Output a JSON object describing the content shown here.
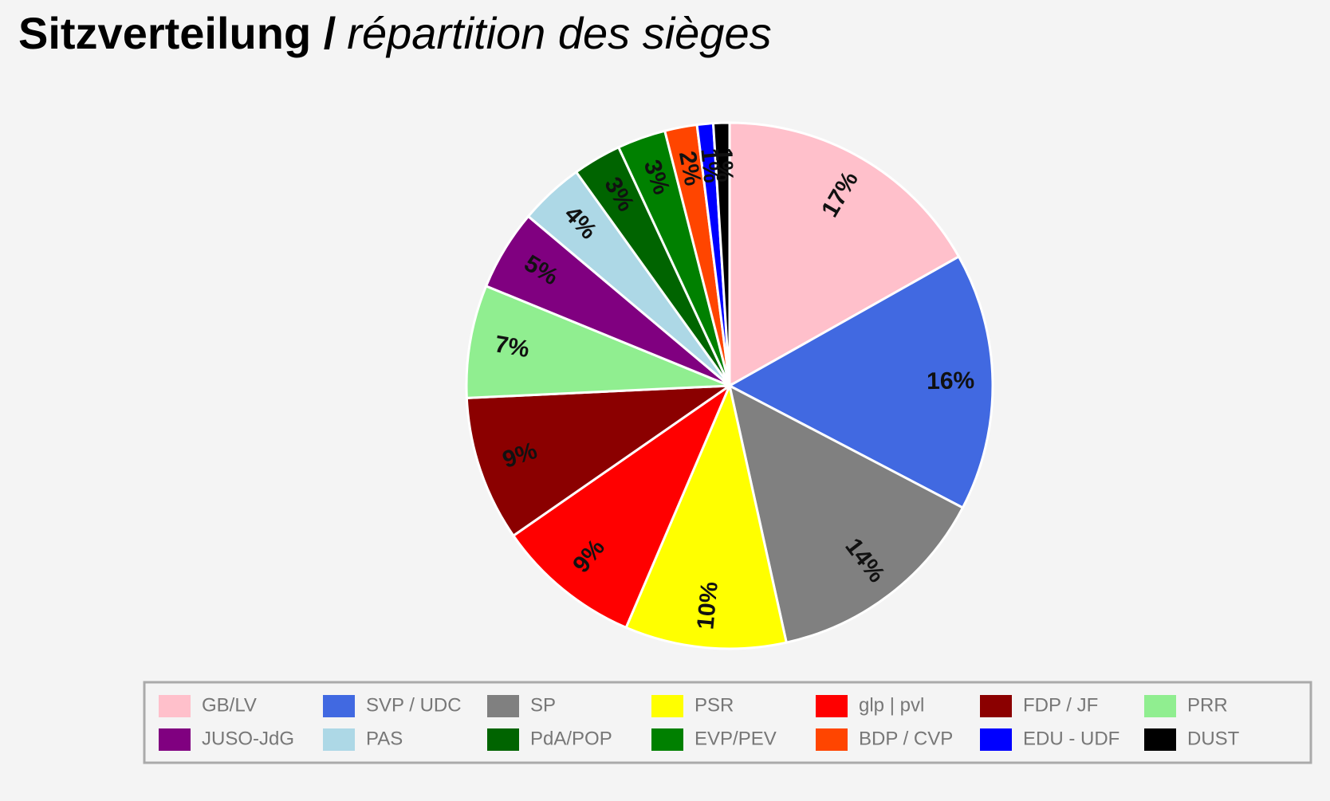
{
  "chart_data": {
    "type": "pie",
    "title_parts": [
      "Sitzverteilung /",
      "répartition des sièges"
    ],
    "categories": [
      "GB/LV",
      "SVP / UDC",
      "SP",
      "PSR",
      "glp | pvl",
      "FDP / JF",
      "PRR",
      "JUSO-JdG",
      "PAS",
      "PdA/POP",
      "EVP/PEV",
      "BDP / CVP",
      "EDU - UDF",
      "DUST"
    ],
    "values": [
      17,
      16,
      14,
      10,
      9,
      9,
      7,
      5,
      4,
      3,
      3,
      2,
      1,
      1
    ],
    "value_labels": [
      "17%",
      "16%",
      "14%",
      "10%",
      "9%",
      "9%",
      "7%",
      "5%",
      "4%",
      "3%",
      "3%",
      "2%",
      "1%",
      "1%"
    ],
    "colors": [
      "#ffc0cb",
      "#4169e1",
      "#808080",
      "#ffff00",
      "#ff0000",
      "#8b0000",
      "#90ee90",
      "#800080",
      "#add8e6",
      "#006400",
      "#008000",
      "#ff4500",
      "#0000ff",
      "#000000"
    ],
    "legend": "bottom"
  }
}
